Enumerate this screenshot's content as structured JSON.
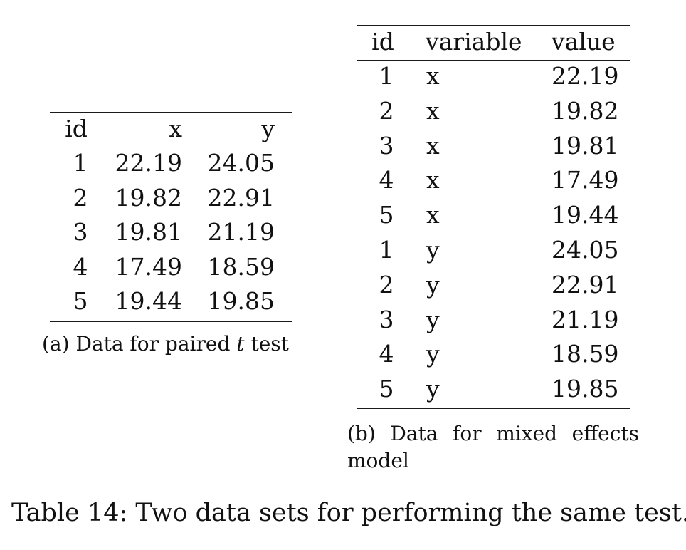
{
  "table_a": {
    "headers": [
      "id",
      "x",
      "y"
    ],
    "rows": [
      [
        "1",
        "22.19",
        "24.05"
      ],
      [
        "2",
        "19.82",
        "22.91"
      ],
      [
        "3",
        "19.81",
        "21.19"
      ],
      [
        "4",
        "17.49",
        "18.59"
      ],
      [
        "5",
        "19.44",
        "19.85"
      ]
    ],
    "caption_prefix": "(a) Data for paired",
    "caption_t": "t",
    "caption_suffix": "test"
  },
  "table_b": {
    "headers": [
      "id",
      "variable",
      "value"
    ],
    "rows": [
      [
        "1",
        "x",
        "22.19"
      ],
      [
        "2",
        "x",
        "19.82"
      ],
      [
        "3",
        "x",
        "19.81"
      ],
      [
        "4",
        "x",
        "17.49"
      ],
      [
        "5",
        "x",
        "19.44"
      ],
      [
        "1",
        "y",
        "24.05"
      ],
      [
        "2",
        "y",
        "22.91"
      ],
      [
        "3",
        "y",
        "21.19"
      ],
      [
        "4",
        "y",
        "18.59"
      ],
      [
        "5",
        "y",
        "19.85"
      ]
    ],
    "caption": "(b) Data for mixed effects model"
  },
  "main_caption": "Table 14: Two data sets for performing the same test."
}
